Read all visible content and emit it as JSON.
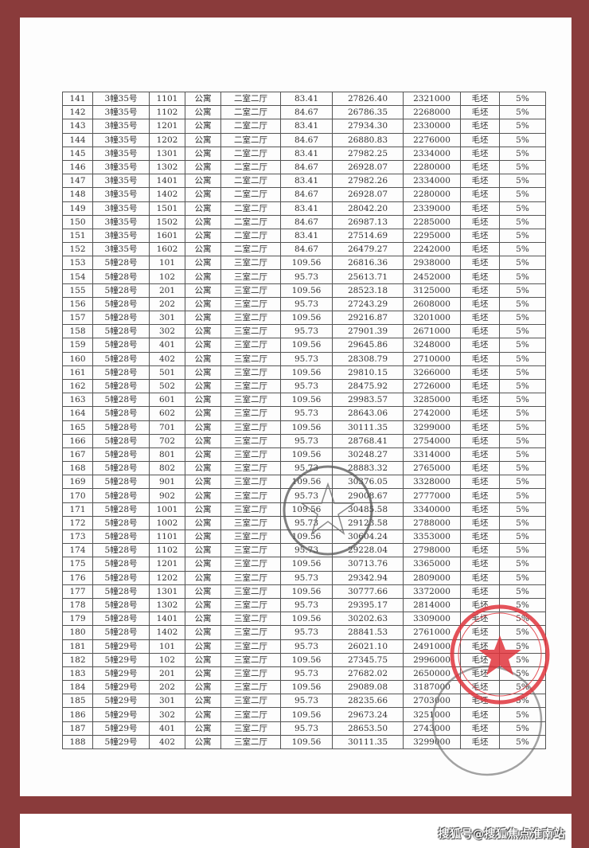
{
  "colors": {
    "frame": "#8a3b3b",
    "stamp_red": "#e0353d",
    "stamp_gray": "#555555"
  },
  "table": {
    "rows": [
      [
        "141",
        "3幢35号",
        "1101",
        "公寓",
        "二室二厅",
        "83.41",
        "27826.40",
        "2321000",
        "毛坯",
        "5%"
      ],
      [
        "142",
        "3幢35号",
        "1102",
        "公寓",
        "二室二厅",
        "84.67",
        "26786.35",
        "2268000",
        "毛坯",
        "5%"
      ],
      [
        "143",
        "3幢35号",
        "1201",
        "公寓",
        "二室二厅",
        "83.41",
        "27934.30",
        "2330000",
        "毛坯",
        "5%"
      ],
      [
        "144",
        "3幢35号",
        "1202",
        "公寓",
        "二室二厅",
        "84.67",
        "26880.83",
        "2276000",
        "毛坯",
        "5%"
      ],
      [
        "145",
        "3幢35号",
        "1301",
        "公寓",
        "二室二厅",
        "83.41",
        "27982.25",
        "2334000",
        "毛坯",
        "5%"
      ],
      [
        "146",
        "3幢35号",
        "1302",
        "公寓",
        "二室二厅",
        "84.67",
        "26928.07",
        "2280000",
        "毛坯",
        "5%"
      ],
      [
        "147",
        "3幢35号",
        "1401",
        "公寓",
        "二室二厅",
        "83.41",
        "27982.26",
        "2334000",
        "毛坯",
        "5%"
      ],
      [
        "148",
        "3幢35号",
        "1402",
        "公寓",
        "二室二厅",
        "84.67",
        "26928.07",
        "2280000",
        "毛坯",
        "5%"
      ],
      [
        "149",
        "3幢35号",
        "1501",
        "公寓",
        "二室二厅",
        "83.41",
        "28042.20",
        "2339000",
        "毛坯",
        "5%"
      ],
      [
        "150",
        "3幢35号",
        "1502",
        "公寓",
        "二室二厅",
        "84.67",
        "26987.13",
        "2285000",
        "毛坯",
        "5%"
      ],
      [
        "151",
        "3幢35号",
        "1601",
        "公寓",
        "二室二厅",
        "83.41",
        "27514.69",
        "2295000",
        "毛坯",
        "5%"
      ],
      [
        "152",
        "3幢35号",
        "1602",
        "公寓",
        "二室二厅",
        "84.67",
        "26479.27",
        "2242000",
        "毛坯",
        "5%"
      ],
      [
        "153",
        "5幢28号",
        "101",
        "公寓",
        "三室二厅",
        "109.56",
        "26816.36",
        "2938000",
        "毛坯",
        "5%"
      ],
      [
        "154",
        "5幢28号",
        "102",
        "公寓",
        "三室二厅",
        "95.73",
        "25613.71",
        "2452000",
        "毛坯",
        "5%"
      ],
      [
        "155",
        "5幢28号",
        "201",
        "公寓",
        "三室二厅",
        "109.56",
        "28523.18",
        "3125000",
        "毛坯",
        "5%"
      ],
      [
        "156",
        "5幢28号",
        "202",
        "公寓",
        "三室二厅",
        "95.73",
        "27243.29",
        "2608000",
        "毛坯",
        "5%"
      ],
      [
        "157",
        "5幢28号",
        "301",
        "公寓",
        "三室二厅",
        "109.56",
        "29216.87",
        "3201000",
        "毛坯",
        "5%"
      ],
      [
        "158",
        "5幢28号",
        "302",
        "公寓",
        "三室二厅",
        "95.73",
        "27901.39",
        "2671000",
        "毛坯",
        "5%"
      ],
      [
        "159",
        "5幢28号",
        "401",
        "公寓",
        "三室二厅",
        "109.56",
        "29645.86",
        "3248000",
        "毛坯",
        "5%"
      ],
      [
        "160",
        "5幢28号",
        "402",
        "公寓",
        "三室二厅",
        "95.73",
        "28308.79",
        "2710000",
        "毛坯",
        "5%"
      ],
      [
        "161",
        "5幢28号",
        "501",
        "公寓",
        "三室二厅",
        "109.56",
        "29810.15",
        "3266000",
        "毛坯",
        "5%"
      ],
      [
        "162",
        "5幢28号",
        "502",
        "公寓",
        "三室二厅",
        "95.73",
        "28475.92",
        "2726000",
        "毛坯",
        "5%"
      ],
      [
        "163",
        "5幢28号",
        "601",
        "公寓",
        "三室二厅",
        "109.56",
        "29983.57",
        "3285000",
        "毛坯",
        "5%"
      ],
      [
        "164",
        "5幢28号",
        "602",
        "公寓",
        "三室二厅",
        "95.73",
        "28643.06",
        "2742000",
        "毛坯",
        "5%"
      ],
      [
        "165",
        "5幢28号",
        "701",
        "公寓",
        "三室二厅",
        "109.56",
        "30111.35",
        "3299000",
        "毛坯",
        "5%"
      ],
      [
        "166",
        "5幢28号",
        "702",
        "公寓",
        "三室二厅",
        "95.73",
        "28768.41",
        "2754000",
        "毛坯",
        "5%"
      ],
      [
        "167",
        "5幢28号",
        "801",
        "公寓",
        "三室二厅",
        "109.56",
        "30248.27",
        "3314000",
        "毛坯",
        "5%"
      ],
      [
        "168",
        "5幢28号",
        "802",
        "公寓",
        "三室二厅",
        "95.73",
        "28883.32",
        "2765000",
        "毛坯",
        "5%"
      ],
      [
        "169",
        "5幢28号",
        "901",
        "公寓",
        "三室二厅",
        "109.56",
        "30376.05",
        "3328000",
        "毛坯",
        "5%"
      ],
      [
        "170",
        "5幢28号",
        "902",
        "公寓",
        "三室二厅",
        "95.73",
        "29008.67",
        "2777000",
        "毛坯",
        "5%"
      ],
      [
        "171",
        "5幢28号",
        "1001",
        "公寓",
        "三室二厅",
        "109.56",
        "30485.58",
        "3340000",
        "毛坯",
        "5%"
      ],
      [
        "172",
        "5幢28号",
        "1002",
        "公寓",
        "三室二厅",
        "95.73",
        "29123.58",
        "2788000",
        "毛坯",
        "5%"
      ],
      [
        "173",
        "5幢28号",
        "1101",
        "公寓",
        "三室二厅",
        "109.56",
        "30604.24",
        "3353000",
        "毛坯",
        "5%"
      ],
      [
        "174",
        "5幢28号",
        "1102",
        "公寓",
        "三室二厅",
        "95.73",
        "29228.04",
        "2798000",
        "毛坯",
        "5%"
      ],
      [
        "175",
        "5幢28号",
        "1201",
        "公寓",
        "三室二厅",
        "109.56",
        "30713.76",
        "3365000",
        "毛坯",
        "5%"
      ],
      [
        "176",
        "5幢28号",
        "1202",
        "公寓",
        "三室二厅",
        "95.73",
        "29342.94",
        "2809000",
        "毛坯",
        "5%"
      ],
      [
        "177",
        "5幢28号",
        "1301",
        "公寓",
        "三室二厅",
        "109.56",
        "30777.66",
        "3372000",
        "毛坯",
        "5%"
      ],
      [
        "178",
        "5幢28号",
        "1302",
        "公寓",
        "三室二厅",
        "95.73",
        "29395.17",
        "2814000",
        "毛坯",
        "5%"
      ],
      [
        "179",
        "5幢28号",
        "1401",
        "公寓",
        "三室二厅",
        "109.56",
        "30202.63",
        "3309000",
        "毛坯",
        "5%"
      ],
      [
        "180",
        "5幢28号",
        "1402",
        "公寓",
        "三室二厅",
        "95.73",
        "28841.53",
        "2761000",
        "毛坯",
        "5%"
      ],
      [
        "181",
        "5幢29号",
        "101",
        "公寓",
        "三室二厅",
        "95.73",
        "26021.10",
        "2491000",
        "毛坯",
        "5%"
      ],
      [
        "182",
        "5幢29号",
        "102",
        "公寓",
        "三室二厅",
        "109.56",
        "27345.75",
        "2996000",
        "毛坯",
        "5%"
      ],
      [
        "183",
        "5幢29号",
        "201",
        "公寓",
        "三室二厅",
        "95.73",
        "27682.02",
        "2650000",
        "毛坯",
        "5%"
      ],
      [
        "184",
        "5幢29号",
        "202",
        "公寓",
        "三室二厅",
        "109.56",
        "29089.08",
        "3187000",
        "毛坯",
        "5%"
      ],
      [
        "185",
        "5幢29号",
        "301",
        "公寓",
        "三室二厅",
        "95.73",
        "28235.66",
        "2703000",
        "毛坯",
        "5%"
      ],
      [
        "186",
        "5幢29号",
        "302",
        "公寓",
        "三室二厅",
        "109.56",
        "29673.24",
        "3251000",
        "毛坯",
        "5%"
      ],
      [
        "187",
        "5幢29号",
        "401",
        "公寓",
        "三室二厅",
        "95.73",
        "28653.50",
        "2743000",
        "毛坯",
        "5%"
      ],
      [
        "188",
        "5幢29号",
        "402",
        "公寓",
        "三室二厅",
        "109.56",
        "30111.35",
        "3299000",
        "毛坯",
        "5%"
      ]
    ]
  },
  "watermark": "搜狐号@搜狐焦点淮南站"
}
